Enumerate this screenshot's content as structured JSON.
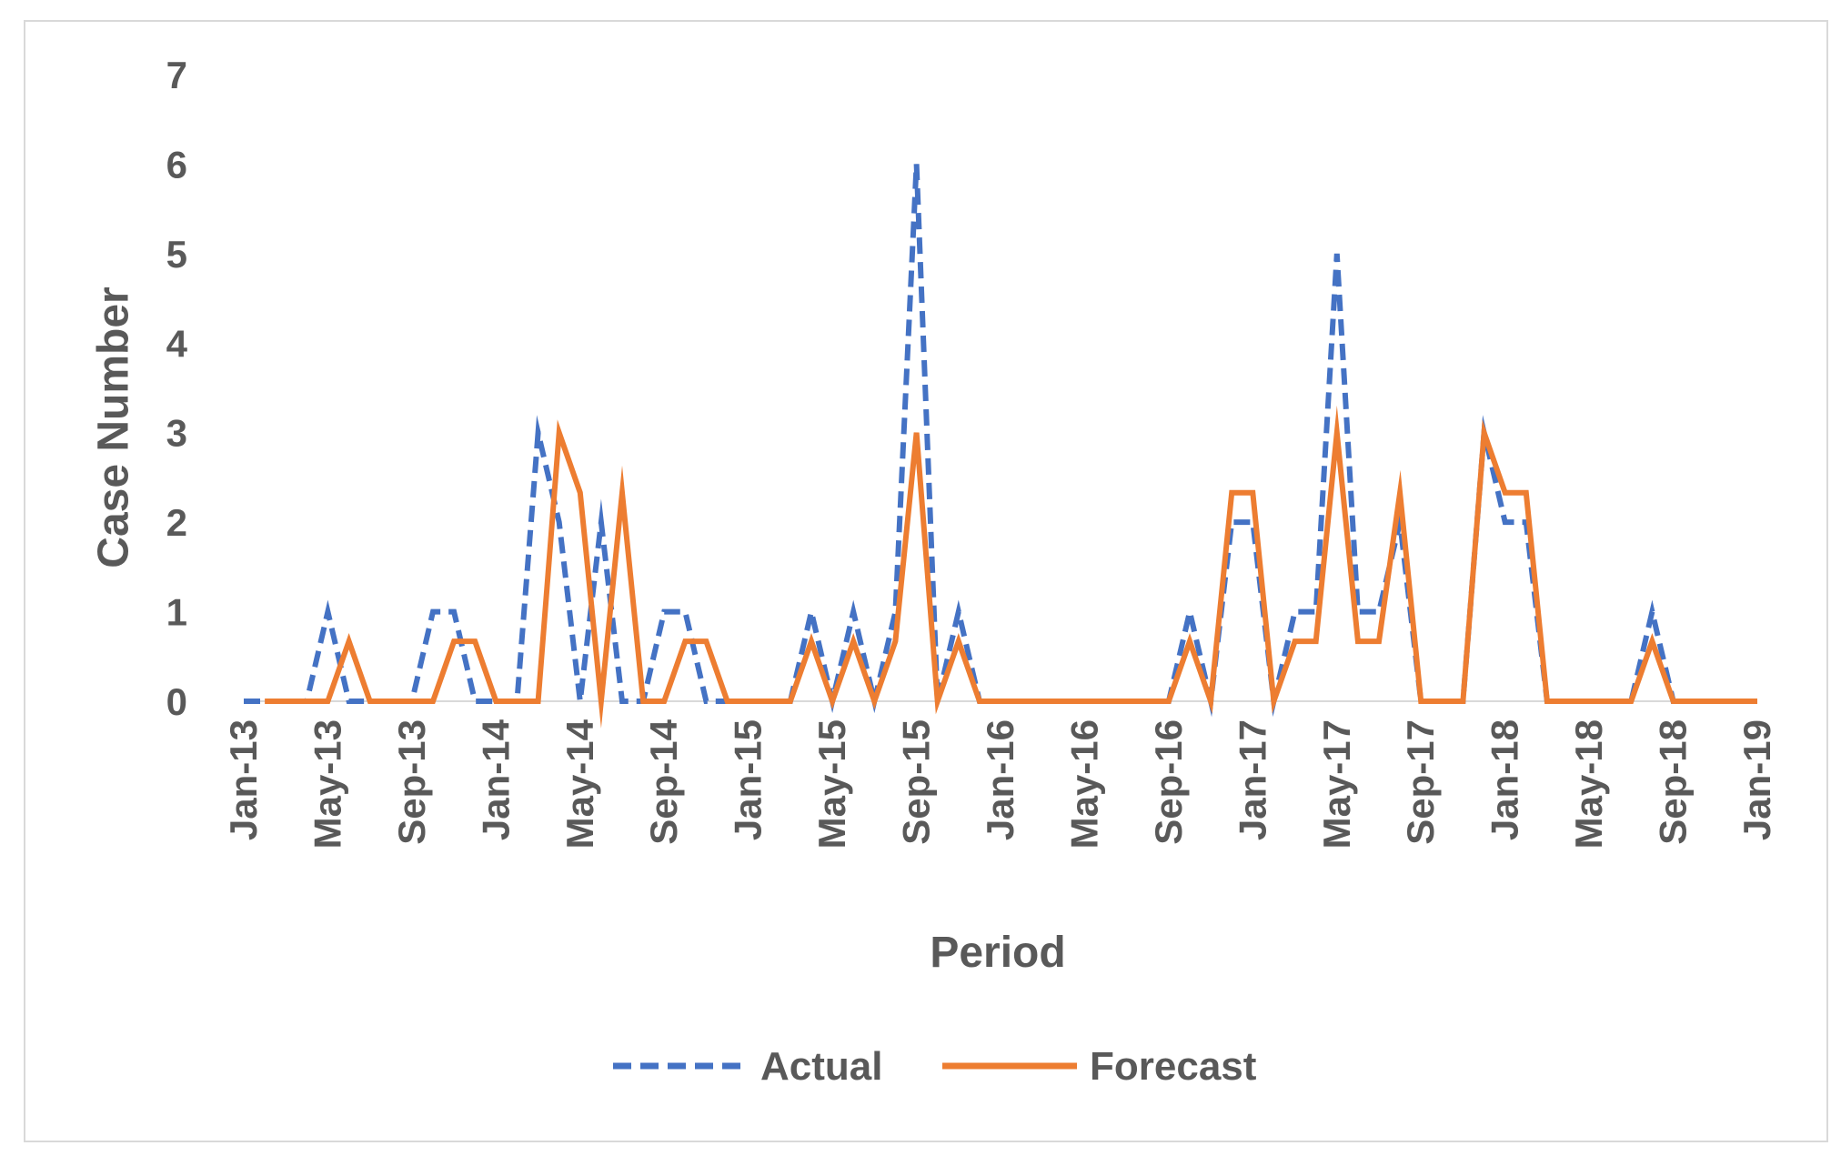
{
  "chart_data": {
    "type": "line",
    "title": "",
    "xlabel": "Period",
    "ylabel": "Case Number",
    "ylim": [
      0,
      7
    ],
    "yticks": [
      "0",
      "1",
      "2",
      "3",
      "4",
      "5",
      "6",
      "7"
    ],
    "x_tick_labels": [
      "Jan-13",
      "May-13",
      "Sep-13",
      "Jan-14",
      "May-14",
      "Sep-14",
      "Jan-15",
      "May-15",
      "Sep-15",
      "Jan-16",
      "May-16",
      "Sep-16",
      "Jan-17",
      "May-17",
      "Sep-17",
      "Jan-18",
      "May-18",
      "Sep-18",
      "Jan-19"
    ],
    "x_tick_month_index": [
      0,
      4,
      8,
      12,
      16,
      20,
      24,
      28,
      32,
      36,
      40,
      44,
      48,
      52,
      56,
      60,
      64,
      68,
      72
    ],
    "x_range": [
      0,
      72
    ],
    "grid": false,
    "legend_position": "bottom",
    "series": [
      {
        "name": "Actual",
        "color": "#4472c4",
        "dash": "dashed",
        "values": [
          0,
          0,
          0,
          0,
          1,
          0,
          0,
          0,
          0,
          1,
          1,
          0,
          0,
          0,
          3,
          2,
          0,
          2,
          0,
          0,
          1,
          1,
          0,
          0,
          0,
          0,
          0,
          1,
          0,
          1,
          0,
          1,
          6,
          0,
          1,
          0,
          0,
          0,
          0,
          0,
          0,
          0,
          0,
          0,
          0,
          1,
          0,
          2,
          2,
          0,
          1,
          1,
          5,
          1,
          1,
          2,
          0,
          0,
          0,
          3,
          2,
          2,
          0,
          0,
          0,
          0,
          0,
          1,
          0,
          0,
          0,
          0,
          0
        ]
      },
      {
        "name": "Forecast",
        "color": "#ed7d31",
        "dash": "solid",
        "start_index": 1,
        "values": [
          0,
          0,
          0,
          0,
          0.67,
          0,
          0,
          0,
          0,
          0.67,
          0.67,
          0,
          0,
          0,
          3,
          2.33,
          0,
          2.33,
          0,
          0,
          0.67,
          0.67,
          0,
          0,
          0,
          0,
          0.67,
          0,
          0.67,
          0,
          0.67,
          3,
          0,
          0.67,
          0,
          0,
          0,
          0,
          0,
          0,
          0,
          0,
          0,
          0,
          0.67,
          0,
          2.33,
          2.33,
          0,
          0.67,
          0.67,
          3,
          0.67,
          0.67,
          2.33,
          0,
          0,
          0,
          3,
          2.33,
          2.33,
          0,
          0,
          0,
          0,
          0,
          0.67,
          0,
          0,
          0,
          0,
          0
        ]
      }
    ]
  }
}
